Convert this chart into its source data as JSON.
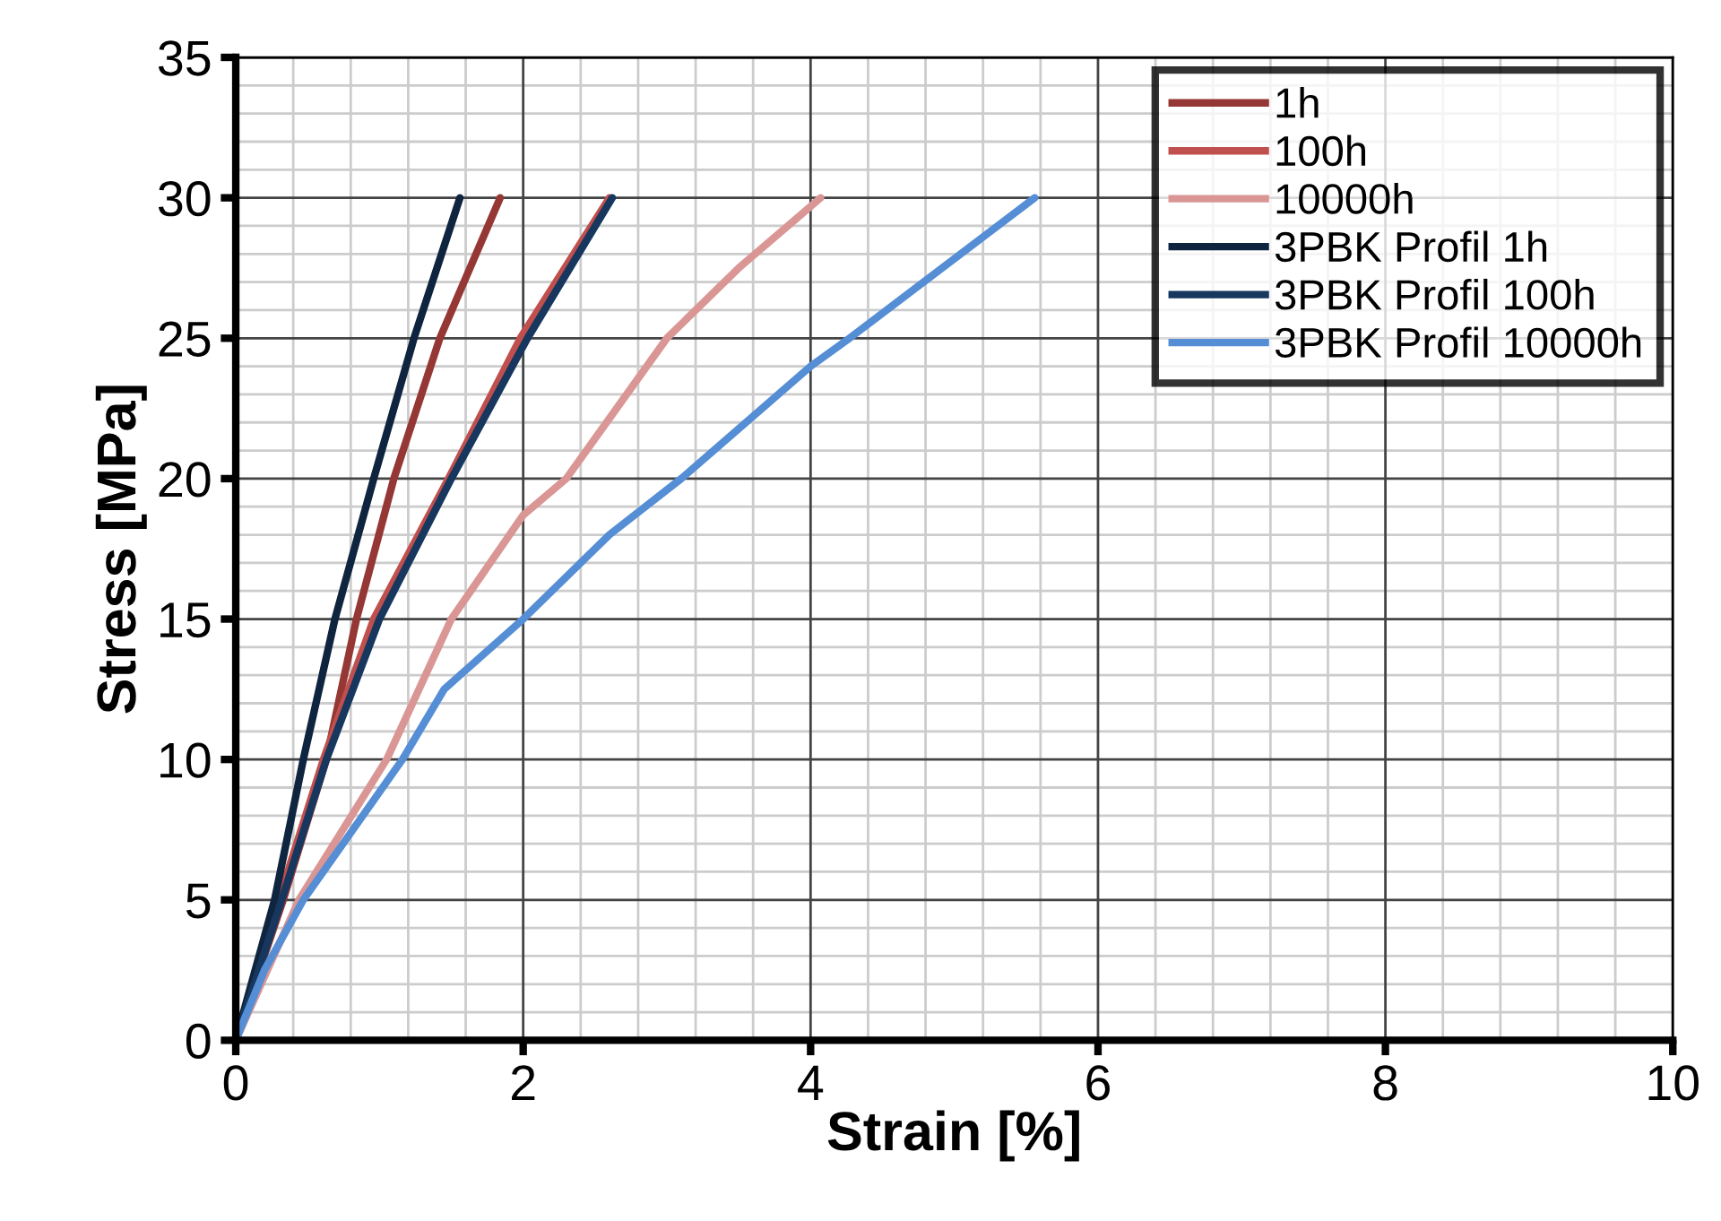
{
  "chart_data": {
    "type": "line",
    "xlabel": "Strain [%]",
    "ylabel": "Stress [MPa]",
    "xlim": [
      0,
      10
    ],
    "xticks": [
      0,
      2,
      4,
      6,
      8,
      10
    ],
    "ylim": [
      0,
      35
    ],
    "yticks": [
      0,
      5,
      10,
      15,
      20,
      25,
      30,
      35
    ],
    "grid": true,
    "legend": "top right",
    "marker": "none",
    "line_style": "solid",
    "series": [
      {
        "name": "1h",
        "color": "#953735",
        "x": [
          0,
          0.33,
          0.63,
          0.84,
          1.1,
          1.42,
          1.84
        ],
        "values": [
          0,
          5,
          10,
          15,
          20,
          25,
          30
        ]
      },
      {
        "name": "100h",
        "color": "#c0504d",
        "x": [
          0,
          0.3,
          0.61,
          0.96,
          1.48,
          1.98,
          2.6
        ],
        "values": [
          0,
          5,
          10,
          15,
          20,
          25,
          30
        ]
      },
      {
        "name": "10000h",
        "color": "#d99694",
        "x": [
          0,
          0.44,
          1.05,
          1.5,
          2.0,
          2.3,
          3.0,
          3.5,
          4.07
        ],
        "values": [
          0,
          5,
          10,
          15,
          18.7,
          20,
          25,
          27.5,
          30
        ]
      },
      {
        "name": "3PBK Profil 1h",
        "color": "#0f243e",
        "x": [
          0,
          0.27,
          0.47,
          0.69,
          0.96,
          1.24,
          1.56
        ],
        "values": [
          0,
          5,
          10,
          15,
          20,
          25,
          30
        ]
      },
      {
        "name": "3PBK Profil 100h",
        "color": "#17375e",
        "x": [
          0,
          0.32,
          0.63,
          1.0,
          1.5,
          2.03,
          2.62
        ],
        "values": [
          0,
          5,
          10,
          15,
          20,
          25,
          30
        ]
      },
      {
        "name": "3PBK Profil 10000h",
        "color": "#558ed5",
        "x": [
          0,
          0.2,
          0.47,
          1.16,
          1.45,
          2.0,
          2.6,
          3.1,
          4.0,
          4.27,
          5.56
        ],
        "values": [
          0,
          2.5,
          5,
          10,
          12.5,
          15,
          18,
          20,
          24,
          25,
          30
        ]
      }
    ]
  }
}
